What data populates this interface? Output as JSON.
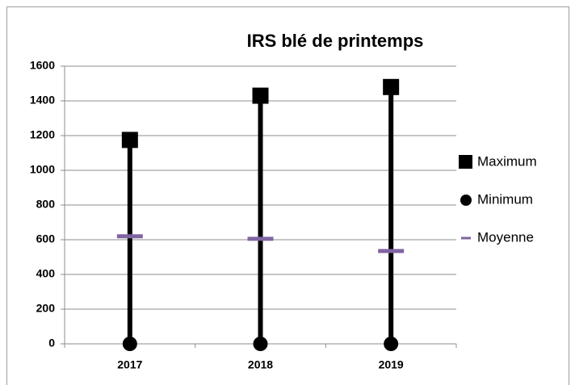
{
  "chart_data": {
    "type": "hilo",
    "title": "IRS blé de printemps",
    "categories": [
      "2017",
      "2018",
      "2019"
    ],
    "series": [
      {
        "name": "Maximum",
        "color": "#000000",
        "marker": "square",
        "values": [
          1175,
          1430,
          1480
        ]
      },
      {
        "name": "Minimum",
        "color": "#000000",
        "marker": "circle",
        "values": [
          0,
          0,
          0
        ]
      },
      {
        "name": "Moyenne",
        "color": "#8064a2",
        "marker": "dash",
        "values": [
          620,
          605,
          535
        ]
      }
    ],
    "ylim": [
      0,
      1600
    ],
    "yticks": [
      0,
      200,
      400,
      600,
      800,
      1000,
      1200,
      1400,
      1600
    ],
    "grid": true,
    "legend": "right"
  }
}
